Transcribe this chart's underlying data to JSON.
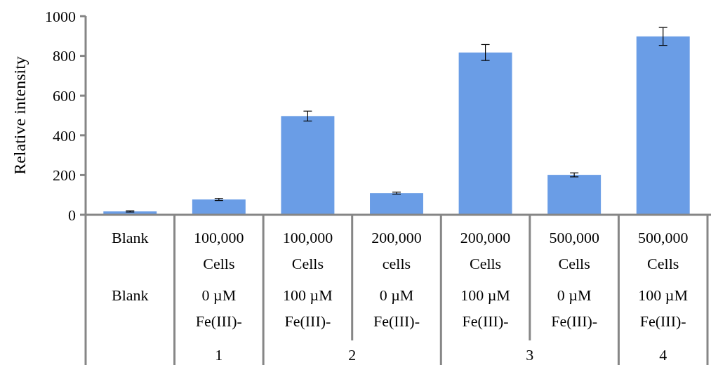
{
  "chart_data": {
    "type": "bar",
    "ylabel": "Relative intensity",
    "categories": [
      "Blank\nBlank",
      "100,000 Cells\n0 µM Fe(III)-",
      "100,000 Cells\n100 µM Fe(III)-",
      "200,000 cells\n0 µM Fe(III)-",
      "200,000 Cells\n100 µM Fe(III)-",
      "500,000 Cells\n0 µM Fe(III)-",
      "500,000 Cells\n100 µM Fe(III)-"
    ],
    "values": [
      17,
      77,
      497,
      109,
      817,
      201,
      898
    ],
    "errors": [
      3,
      5,
      25,
      5,
      40,
      10,
      45
    ],
    "color": "#6a9de6",
    "ylim": [
      0,
      1000
    ],
    "yticks": [
      0,
      200,
      400,
      600,
      800,
      1000
    ],
    "annotations": [
      "1",
      "2",
      "3",
      "4"
    ],
    "grid": false
  }
}
